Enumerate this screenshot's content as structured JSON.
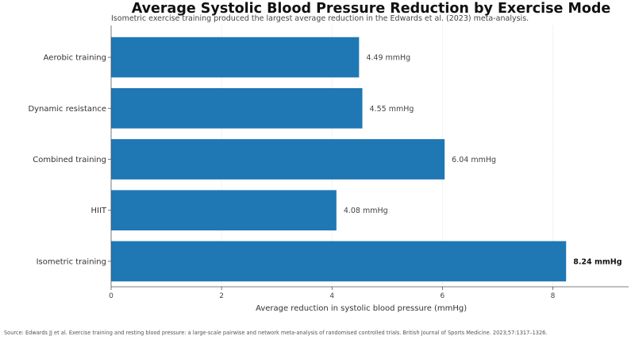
{
  "chart_data": {
    "type": "bar",
    "orientation": "horizontal",
    "title": "Average Systolic Blood Pressure Reduction by Exercise Mode",
    "subtitle": "Isometric exercise training produced the largest average reduction in the Edwards et al. (2023) meta-analysis.",
    "categories": [
      "Aerobic training",
      "Dynamic resistance",
      "Combined training",
      "HIIT",
      "Isometric training"
    ],
    "values": [
      4.49,
      4.55,
      6.04,
      4.08,
      8.24
    ],
    "value_labels": [
      "4.49 mmHg",
      "4.55 mmHg",
      "6.04 mmHg",
      "4.08 mmHg",
      "8.24 mmHg"
    ],
    "highlight_index": 4,
    "xlabel": "Average reduction in systolic blood pressure (mmHg)",
    "ylabel": "",
    "xlim": [
      0,
      9.2
    ],
    "xticks": [
      0,
      2,
      4,
      6,
      8
    ],
    "grid": "vertical",
    "bar_color": "#1f77b4",
    "source": "Source: Edwards JJ et al. Exercise training and resting blood pressure: a large-scale pairwise and network meta-analysis of randomised controlled trials. British Journal of Sports Medicine. 2023;57:1317–1326."
  }
}
